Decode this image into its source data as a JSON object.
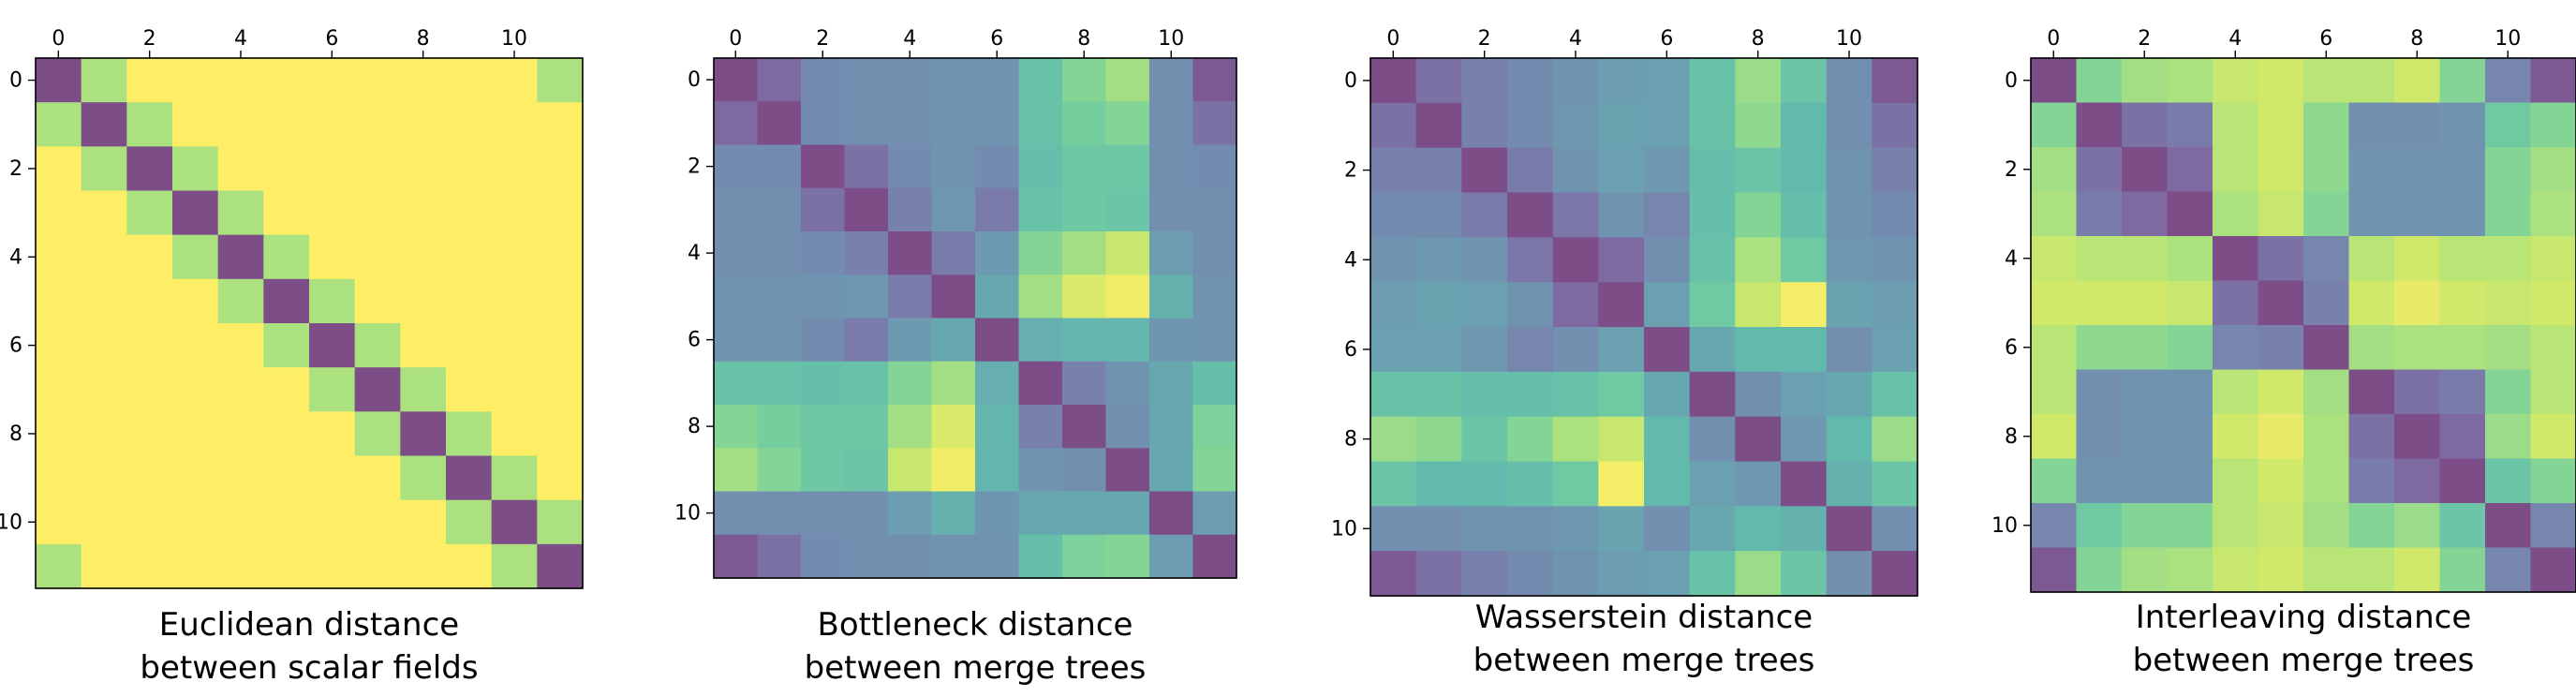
{
  "chart_data": [
    {
      "type": "heatmap",
      "title": "",
      "caption": [
        "Euclidean distance",
        "between scalar fields"
      ],
      "xlabel": "",
      "ylabel": "",
      "x_ticks": [
        0,
        2,
        4,
        6,
        8,
        10
      ],
      "y_ticks": [
        0,
        2,
        4,
        6,
        8,
        10
      ],
      "tick_labels": [
        "0",
        "2",
        "4",
        "6",
        "8",
        "10"
      ],
      "xlim": [
        0,
        11
      ],
      "ylim": [
        0,
        11
      ],
      "x_axis_position": "top",
      "colormap": "viridis",
      "alpha": 0.7,
      "grid": false,
      "matrix": [
        [
          0.0,
          0.82,
          1,
          1,
          1,
          1,
          1,
          1,
          1,
          1,
          1,
          0.82
        ],
        [
          0.82,
          0.0,
          0.82,
          1,
          1,
          1,
          1,
          1,
          1,
          1,
          1,
          1
        ],
        [
          1,
          0.82,
          0.0,
          0.82,
          1,
          1,
          1,
          1,
          1,
          1,
          1,
          1
        ],
        [
          1,
          1,
          0.82,
          0.0,
          0.82,
          1,
          1,
          1,
          1,
          1,
          1,
          1
        ],
        [
          1,
          1,
          1,
          0.82,
          0.0,
          0.82,
          1,
          1,
          1,
          1,
          1,
          1
        ],
        [
          1,
          1,
          1,
          1,
          0.82,
          0.0,
          0.82,
          1,
          1,
          1,
          1,
          1
        ],
        [
          1,
          1,
          1,
          1,
          1,
          0.82,
          0.0,
          0.82,
          1,
          1,
          1,
          1
        ],
        [
          1,
          1,
          1,
          1,
          1,
          1,
          0.82,
          0.0,
          0.82,
          1,
          1,
          1
        ],
        [
          1,
          1,
          1,
          1,
          1,
          1,
          1,
          0.82,
          0.0,
          0.82,
          1,
          1
        ],
        [
          1,
          1,
          1,
          1,
          1,
          1,
          1,
          1,
          0.82,
          0.0,
          0.82,
          1
        ],
        [
          1,
          1,
          1,
          1,
          1,
          1,
          1,
          1,
          1,
          0.82,
          0.0,
          0.82
        ],
        [
          0.82,
          1,
          1,
          1,
          1,
          1,
          1,
          1,
          1,
          1,
          0.82,
          0.0
        ]
      ]
    },
    {
      "type": "heatmap",
      "title": "",
      "caption": [
        "Bottleneck distance",
        "between merge trees"
      ],
      "xlabel": "",
      "ylabel": "",
      "x_ticks": [
        0,
        2,
        4,
        6,
        8,
        10
      ],
      "y_ticks": [
        0,
        2,
        4,
        6,
        8,
        10
      ],
      "tick_labels": [
        "0",
        "2",
        "4",
        "6",
        "8",
        "10"
      ],
      "xlim": [
        0,
        11
      ],
      "ylim": [
        0,
        11
      ],
      "x_axis_position": "top",
      "colormap": "viridis",
      "alpha": 0.7,
      "grid": false,
      "matrix": [
        [
          0.0,
          0.12,
          0.28,
          0.3,
          0.3,
          0.32,
          0.32,
          0.6,
          0.72,
          0.8,
          0.3,
          0.05
        ],
        [
          0.12,
          0.0,
          0.28,
          0.3,
          0.3,
          0.32,
          0.32,
          0.6,
          0.68,
          0.72,
          0.3,
          0.15
        ],
        [
          0.28,
          0.28,
          0.0,
          0.15,
          0.28,
          0.32,
          0.28,
          0.58,
          0.64,
          0.64,
          0.3,
          0.28
        ],
        [
          0.3,
          0.3,
          0.15,
          0.0,
          0.22,
          0.35,
          0.2,
          0.6,
          0.64,
          0.62,
          0.3,
          0.3
        ],
        [
          0.3,
          0.3,
          0.28,
          0.22,
          0.0,
          0.2,
          0.36,
          0.72,
          0.8,
          0.88,
          0.38,
          0.3
        ],
        [
          0.32,
          0.32,
          0.32,
          0.35,
          0.2,
          0.0,
          0.45,
          0.8,
          0.92,
          0.97,
          0.5,
          0.32
        ],
        [
          0.32,
          0.32,
          0.28,
          0.2,
          0.36,
          0.45,
          0.0,
          0.48,
          0.52,
          0.52,
          0.34,
          0.32
        ],
        [
          0.6,
          0.6,
          0.58,
          0.6,
          0.72,
          0.8,
          0.48,
          0.0,
          0.22,
          0.32,
          0.45,
          0.58
        ],
        [
          0.72,
          0.68,
          0.64,
          0.64,
          0.8,
          0.92,
          0.52,
          0.22,
          0.0,
          0.3,
          0.45,
          0.7
        ],
        [
          0.8,
          0.72,
          0.64,
          0.62,
          0.88,
          0.97,
          0.52,
          0.32,
          0.3,
          0.0,
          0.45,
          0.72
        ],
        [
          0.3,
          0.3,
          0.3,
          0.3,
          0.38,
          0.5,
          0.34,
          0.45,
          0.45,
          0.45,
          0.0,
          0.38
        ],
        [
          0.05,
          0.15,
          0.28,
          0.3,
          0.3,
          0.32,
          0.32,
          0.58,
          0.7,
          0.72,
          0.38,
          0.0
        ]
      ]
    },
    {
      "type": "heatmap",
      "title": "",
      "caption": [
        "Wasserstein distance",
        "between merge trees"
      ],
      "xlabel": "",
      "ylabel": "",
      "x_ticks": [
        0,
        2,
        4,
        6,
        8,
        10
      ],
      "y_ticks": [
        0,
        2,
        4,
        6,
        8,
        10
      ],
      "tick_labels": [
        "0",
        "2",
        "4",
        "6",
        "8",
        "10"
      ],
      "xlim": [
        0,
        11
      ],
      "ylim": [
        0,
        11
      ],
      "x_axis_position": "top",
      "colormap": "viridis",
      "alpha": 0.7,
      "grid": false,
      "matrix": [
        [
          0.0,
          0.15,
          0.22,
          0.28,
          0.32,
          0.38,
          0.4,
          0.6,
          0.78,
          0.62,
          0.3,
          0.05
        ],
        [
          0.15,
          0.0,
          0.22,
          0.28,
          0.35,
          0.42,
          0.4,
          0.6,
          0.75,
          0.55,
          0.3,
          0.15
        ],
        [
          0.22,
          0.22,
          0.0,
          0.2,
          0.32,
          0.4,
          0.35,
          0.58,
          0.62,
          0.55,
          0.32,
          0.22
        ],
        [
          0.28,
          0.28,
          0.2,
          0.0,
          0.18,
          0.32,
          0.25,
          0.58,
          0.72,
          0.58,
          0.32,
          0.28
        ],
        [
          0.32,
          0.35,
          0.32,
          0.18,
          0.0,
          0.12,
          0.3,
          0.6,
          0.82,
          0.65,
          0.35,
          0.32
        ],
        [
          0.38,
          0.42,
          0.4,
          0.32,
          0.12,
          0.0,
          0.4,
          0.65,
          0.88,
          0.98,
          0.42,
          0.38
        ],
        [
          0.4,
          0.4,
          0.35,
          0.25,
          0.3,
          0.4,
          0.0,
          0.45,
          0.55,
          0.55,
          0.3,
          0.4
        ],
        [
          0.6,
          0.6,
          0.58,
          0.58,
          0.6,
          0.65,
          0.45,
          0.0,
          0.3,
          0.4,
          0.45,
          0.6
        ],
        [
          0.78,
          0.75,
          0.62,
          0.72,
          0.82,
          0.88,
          0.55,
          0.3,
          0.0,
          0.35,
          0.55,
          0.78
        ],
        [
          0.62,
          0.55,
          0.55,
          0.58,
          0.65,
          0.98,
          0.55,
          0.4,
          0.35,
          0.0,
          0.5,
          0.62
        ],
        [
          0.3,
          0.3,
          0.32,
          0.32,
          0.35,
          0.42,
          0.3,
          0.45,
          0.55,
          0.5,
          0.0,
          0.3
        ],
        [
          0.05,
          0.15,
          0.22,
          0.28,
          0.32,
          0.38,
          0.4,
          0.6,
          0.78,
          0.62,
          0.3,
          0.0
        ]
      ]
    },
    {
      "type": "heatmap",
      "title": "",
      "caption": [
        "Interleaving distance",
        "between merge trees"
      ],
      "xlabel": "",
      "ylabel": "",
      "x_ticks": [
        0,
        2,
        4,
        6,
        8,
        10
      ],
      "y_ticks": [
        0,
        2,
        4,
        6,
        8,
        10
      ],
      "tick_labels": [
        "0",
        "2",
        "4",
        "6",
        "8",
        "10"
      ],
      "xlim": [
        0,
        11
      ],
      "ylim": [
        0,
        11
      ],
      "x_axis_position": "top",
      "colormap": "viridis",
      "alpha": 0.7,
      "grid": false,
      "matrix": [
        [
          0.0,
          0.72,
          0.8,
          0.82,
          0.88,
          0.9,
          0.85,
          0.85,
          0.9,
          0.72,
          0.25,
          0.05
        ],
        [
          0.72,
          0.0,
          0.15,
          0.2,
          0.85,
          0.9,
          0.75,
          0.3,
          0.3,
          0.32,
          0.65,
          0.72
        ],
        [
          0.8,
          0.15,
          0.0,
          0.12,
          0.85,
          0.9,
          0.75,
          0.32,
          0.32,
          0.32,
          0.72,
          0.8
        ],
        [
          0.82,
          0.2,
          0.12,
          0.0,
          0.82,
          0.88,
          0.72,
          0.32,
          0.32,
          0.32,
          0.72,
          0.82
        ],
        [
          0.88,
          0.85,
          0.85,
          0.82,
          0.0,
          0.15,
          0.25,
          0.85,
          0.9,
          0.85,
          0.85,
          0.88
        ],
        [
          0.9,
          0.9,
          0.9,
          0.88,
          0.15,
          0.0,
          0.22,
          0.9,
          0.95,
          0.9,
          0.88,
          0.9
        ],
        [
          0.85,
          0.75,
          0.75,
          0.72,
          0.25,
          0.22,
          0.0,
          0.8,
          0.82,
          0.82,
          0.8,
          0.85
        ],
        [
          0.85,
          0.3,
          0.32,
          0.32,
          0.85,
          0.9,
          0.8,
          0.0,
          0.15,
          0.2,
          0.72,
          0.85
        ],
        [
          0.9,
          0.3,
          0.32,
          0.32,
          0.9,
          0.95,
          0.82,
          0.15,
          0.0,
          0.12,
          0.78,
          0.9
        ],
        [
          0.72,
          0.32,
          0.32,
          0.32,
          0.85,
          0.9,
          0.82,
          0.2,
          0.12,
          0.0,
          0.62,
          0.72
        ],
        [
          0.25,
          0.65,
          0.72,
          0.72,
          0.85,
          0.88,
          0.8,
          0.72,
          0.78,
          0.62,
          0.0,
          0.25
        ],
        [
          0.05,
          0.72,
          0.8,
          0.82,
          0.88,
          0.9,
          0.85,
          0.85,
          0.9,
          0.72,
          0.25,
          0.0
        ]
      ]
    }
  ]
}
